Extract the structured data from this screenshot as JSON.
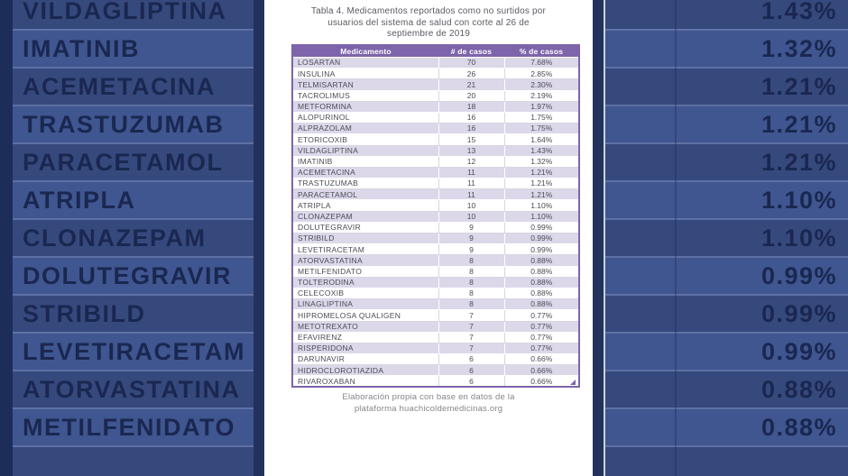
{
  "background": {
    "left_names": [
      "VILDAGLIPTINA",
      "IMATINIB",
      "ACEMETACINA",
      "TRASTUZUMAB",
      "PARACETAMOL",
      "ATRIPLA",
      "CLONAZEPAM",
      "DOLUTEGRAVIR",
      "STRIBILD",
      "LEVETIRACETAM",
      "ATORVASTATINA",
      "METILFENIDATO"
    ],
    "right_pcts": [
      "1.43%",
      "1.32%",
      "1.21%",
      "1.21%",
      "1.21%",
      "1.10%",
      "1.10%",
      "0.99%",
      "0.99%",
      "0.99%",
      "0.88%",
      "0.88%"
    ]
  },
  "card": {
    "title_lines": [
      "Tabla 4. Medicamentos reportados como no surtidos por",
      "usuarios del sistema de salud con corte al 26 de",
      "septiembre de 2019"
    ],
    "footer_lines": [
      "Elaboración propia con base en datos de la",
      "plataforma huachicoldemedicinas.org"
    ],
    "table": {
      "headers": {
        "medication": "Medicamento",
        "cases": "# de casos",
        "pct": "% de casos"
      },
      "rows": [
        {
          "name": "LOSARTAN",
          "cases": "70",
          "pct": "7.68%"
        },
        {
          "name": "INSULINA",
          "cases": "26",
          "pct": "2.85%"
        },
        {
          "name": "TELMISARTAN",
          "cases": "21",
          "pct": "2.30%"
        },
        {
          "name": "TACROLIMUS",
          "cases": "20",
          "pct": "2.19%"
        },
        {
          "name": "METFORMINA",
          "cases": "18",
          "pct": "1.97%"
        },
        {
          "name": "ALOPURINOL",
          "cases": "16",
          "pct": "1.75%"
        },
        {
          "name": "ALPRAZOLAM",
          "cases": "16",
          "pct": "1.75%"
        },
        {
          "name": "ETORICOXIB",
          "cases": "15",
          "pct": "1.64%"
        },
        {
          "name": "VILDAGLIPTINA",
          "cases": "13",
          "pct": "1.43%"
        },
        {
          "name": "IMATINIB",
          "cases": "12",
          "pct": "1.32%"
        },
        {
          "name": "ACEMETACINA",
          "cases": "11",
          "pct": "1.21%"
        },
        {
          "name": "TRASTUZUMAB",
          "cases": "11",
          "pct": "1.21%"
        },
        {
          "name": "PARACETAMOL",
          "cases": "11",
          "pct": "1.21%"
        },
        {
          "name": "ATRIPLA",
          "cases": "10",
          "pct": "1.10%"
        },
        {
          "name": "CLONAZEPAM",
          "cases": "10",
          "pct": "1.10%"
        },
        {
          "name": "DOLUTEGRAVIR",
          "cases": "9",
          "pct": "0.99%"
        },
        {
          "name": "STRIBILD",
          "cases": "9",
          "pct": "0.99%"
        },
        {
          "name": "LEVETIRACETAM",
          "cases": "9",
          "pct": "0.99%"
        },
        {
          "name": "ATORVASTATINA",
          "cases": "8",
          "pct": "0.88%"
        },
        {
          "name": "METILFENIDATO",
          "cases": "8",
          "pct": "0.88%"
        },
        {
          "name": "TOLTERODINA",
          "cases": "8",
          "pct": "0.88%"
        },
        {
          "name": "CELECOXIB",
          "cases": "8",
          "pct": "0.88%"
        },
        {
          "name": "LINAGLIPTINA",
          "cases": "8",
          "pct": "0.88%"
        },
        {
          "name": "HIPROMELOSA QUALIGEN",
          "cases": "7",
          "pct": "0.77%"
        },
        {
          "name": "METOTREXATO",
          "cases": "7",
          "pct": "0.77%"
        },
        {
          "name": "EFAVIRENZ",
          "cases": "7",
          "pct": "0.77%"
        },
        {
          "name": "RISPERIDONA",
          "cases": "7",
          "pct": "0.77%"
        },
        {
          "name": "DARUNAVIR",
          "cases": "6",
          "pct": "0.66%"
        },
        {
          "name": "HIDROCLOROTIAZIDA",
          "cases": "6",
          "pct": "0.66%"
        },
        {
          "name": "RIVAROXABAN",
          "cases": "6",
          "pct": "0.66%"
        }
      ]
    }
  },
  "colors": {
    "accent_purple": "#7d64ab",
    "row_lavender": "#dcd8ea",
    "bg_navy_dark": "#1d2d59",
    "bg_row_dark": "#36497d",
    "bg_row_light": "#3f5690",
    "card_white": "#ffffff"
  }
}
